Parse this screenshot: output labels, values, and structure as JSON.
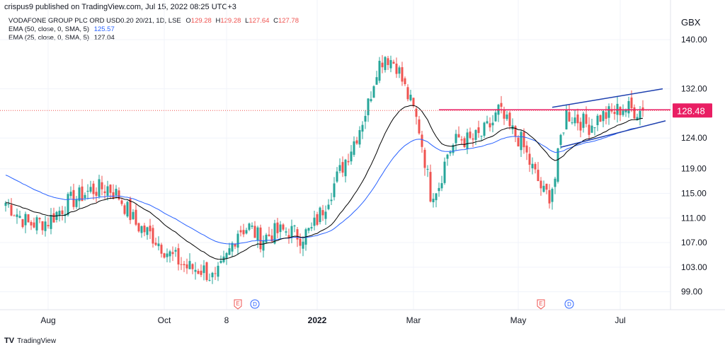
{
  "header": {
    "text": "crispus9 published on TradingView.com, Jul 15, 2022 08:25 UTC+3"
  },
  "legend": {
    "symbol": "VODAFONE GROUP PLC ORD USD0.20 20/21, 1D, LSE",
    "o_label": "O",
    "o_value": "129.28",
    "h_label": "H",
    "h_value": "129.28",
    "l_label": "L",
    "l_value": "127.64",
    "c_label": "C",
    "c_value": "127.78",
    "ema50_label": "EMA (50, close, 0, SMA, 5)",
    "ema50_value": "125.57",
    "ema25_label": "EMA (25, close, 0, SMA, 5)",
    "ema25_value": "127.04"
  },
  "footer": {
    "logo_text": "TV",
    "brand": "TradingView"
  },
  "colors": {
    "up": "#26a69a",
    "down": "#ef5350",
    "ema50": "#2962ff",
    "ema25": "#000000",
    "resistance": "#e91e63",
    "trendline": "#1e40af",
    "price_badge": "#e91e63"
  },
  "chart_data": {
    "type": "candlestick",
    "currency_label": "GBX",
    "last_price": "128.48",
    "ylim": [
      97,
      143
    ],
    "y_ticks": [
      "140.00",
      "132.00",
      "124.00",
      "119.00",
      "115.00",
      "111.00",
      "107.00",
      "103.00",
      "99.00"
    ],
    "y_tick_values": [
      140,
      132,
      124,
      119,
      115,
      111,
      107,
      103,
      99
    ],
    "x_labels": [
      "Aug",
      "Oct",
      "8",
      "2022",
      "Mar",
      "May",
      "Jul"
    ],
    "x_label_index": [
      15,
      56,
      78,
      110,
      144,
      181,
      217
    ],
    "events": [
      {
        "label": "E",
        "index": 82,
        "kind": "earnings"
      },
      {
        "label": "D",
        "index": 88,
        "kind": "dividend"
      },
      {
        "label": "E",
        "index": 189,
        "kind": "earnings"
      },
      {
        "label": "D",
        "index": 199,
        "kind": "dividend"
      }
    ],
    "anchors": [
      [
        0,
        113.5
      ],
      [
        8,
        110.0
      ],
      [
        15,
        110.5
      ],
      [
        22,
        113.5
      ],
      [
        30,
        115.5
      ],
      [
        36,
        116.0
      ],
      [
        40,
        114.5
      ],
      [
        46,
        110.0
      ],
      [
        52,
        108.0
      ],
      [
        58,
        105.0
      ],
      [
        64,
        103.0
      ],
      [
        70,
        102.5
      ],
      [
        74,
        100.8
      ],
      [
        78,
        104.5
      ],
      [
        82,
        109.0
      ],
      [
        86,
        109.5
      ],
      [
        90,
        107.5
      ],
      [
        94,
        108.5
      ],
      [
        100,
        109.0
      ],
      [
        104,
        108.0
      ],
      [
        108,
        109.0
      ],
      [
        112,
        112.5
      ],
      [
        116,
        116.5
      ],
      [
        120,
        120.5
      ],
      [
        124,
        124.5
      ],
      [
        128,
        129.5
      ],
      [
        131,
        135.5
      ],
      [
        134,
        137.5
      ],
      [
        138,
        136.0
      ],
      [
        141,
        132.0
      ],
      [
        144,
        128.5
      ],
      [
        146,
        125.5
      ],
      [
        148,
        120.5
      ],
      [
        150,
        115.0
      ],
      [
        153,
        116.5
      ],
      [
        156,
        121.5
      ],
      [
        160,
        124.0
      ],
      [
        164,
        123.5
      ],
      [
        168,
        124.5
      ],
      [
        172,
        126.5
      ],
      [
        174,
        128.5
      ],
      [
        178,
        125.5
      ],
      [
        182,
        123.5
      ],
      [
        185,
        120.0
      ],
      [
        188,
        117.0
      ],
      [
        190,
        115.0
      ],
      [
        192,
        114.8
      ],
      [
        194,
        117.5
      ],
      [
        196,
        124.0
      ],
      [
        198,
        128.0
      ],
      [
        202,
        127.0
      ],
      [
        206,
        126.0
      ],
      [
        210,
        127.5
      ],
      [
        214,
        128.0
      ],
      [
        218,
        129.0
      ],
      [
        222,
        128.5
      ],
      [
        225,
        128.48
      ]
    ],
    "candle_count": 226,
    "ema_periods": [
      50,
      25
    ],
    "resistance_level": 128.6,
    "resistance_from_index": 153,
    "trendline_upper": [
      [
        193,
        129.0
      ],
      [
        232,
        132.0
      ]
    ],
    "trendline_lower": [
      [
        196,
        122.5
      ],
      [
        233,
        126.8
      ]
    ]
  }
}
